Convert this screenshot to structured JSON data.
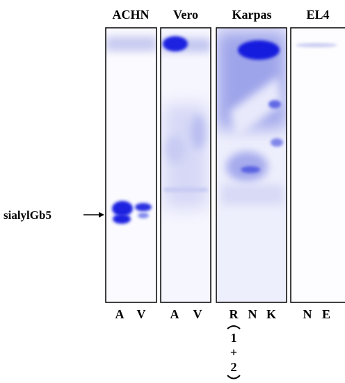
{
  "panels": [
    {
      "title": "ACHN",
      "lanes": [
        "A",
        "V"
      ]
    },
    {
      "title": "Vero",
      "lanes": [
        "A",
        "V"
      ]
    },
    {
      "title": "Karpas",
      "lanes": [
        "R",
        "N",
        "K"
      ]
    },
    {
      "title": "EL4",
      "lanes": [
        "N",
        "E"
      ]
    }
  ],
  "annotation": {
    "label": "sialylGb5"
  },
  "combined_lane": {
    "top": "1",
    "plus": "+",
    "bottom": "2"
  }
}
